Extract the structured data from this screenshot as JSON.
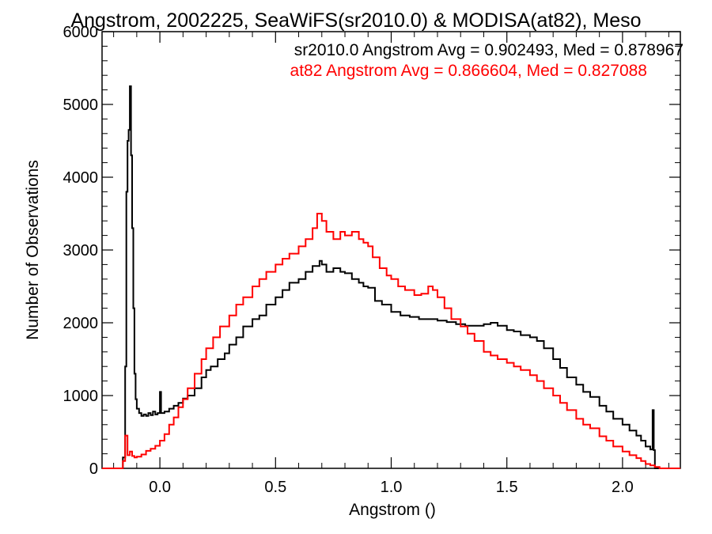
{
  "chart_data": {
    "type": "line",
    "title": "Angstrom, 2002225, SeaWiFS(sr2010.0) & MODISA(at82), Meso",
    "xlabel": "Angstrom ()",
    "ylabel": "Number of Observations",
    "xlim": [
      -0.25,
      2.25
    ],
    "ylim": [
      0,
      6000
    ],
    "xticks": [
      0.0,
      0.5,
      1.0,
      1.5,
      2.0
    ],
    "xtick_labels": [
      "0.0",
      "0.5",
      "1.0",
      "1.5",
      "2.0"
    ],
    "yticks": [
      0,
      1000,
      2000,
      3000,
      4000,
      5000,
      6000
    ],
    "ytick_labels": [
      "0",
      "1000",
      "2000",
      "3000",
      "4000",
      "5000",
      "6000"
    ],
    "grid": false,
    "annotations": [
      {
        "text": "sr2010.0 Angstrom Avg = 0.902493, Med = 0.878967",
        "color": "#000000"
      },
      {
        "text": "at82 Angstrom Avg = 0.866604, Med = 0.827088",
        "color": "#ff0000"
      }
    ],
    "series": [
      {
        "color": "#000000",
        "style": "step",
        "points": [
          [
            -0.25,
            0
          ],
          [
            -0.17,
            0
          ],
          [
            -0.16,
            150
          ],
          [
            -0.15,
            1400
          ],
          [
            -0.145,
            3800
          ],
          [
            -0.14,
            4500
          ],
          [
            -0.135,
            4650
          ],
          [
            -0.13,
            5250
          ],
          [
            -0.125,
            4300
          ],
          [
            -0.12,
            3300
          ],
          [
            -0.115,
            2200
          ],
          [
            -0.11,
            1300
          ],
          [
            -0.105,
            950
          ],
          [
            -0.1,
            820
          ],
          [
            -0.09,
            760
          ],
          [
            -0.08,
            720
          ],
          [
            -0.07,
            740
          ],
          [
            -0.06,
            720
          ],
          [
            -0.05,
            760
          ],
          [
            -0.04,
            730
          ],
          [
            -0.03,
            780
          ],
          [
            -0.02,
            740
          ],
          [
            -0.01,
            760
          ],
          [
            0.0,
            1050
          ],
          [
            0.005,
            760
          ],
          [
            0.02,
            780
          ],
          [
            0.04,
            820
          ],
          [
            0.06,
            860
          ],
          [
            0.08,
            900
          ],
          [
            0.1,
            960
          ],
          [
            0.12,
            1000
          ],
          [
            0.15,
            1100
          ],
          [
            0.18,
            1250
          ],
          [
            0.2,
            1350
          ],
          [
            0.22,
            1400
          ],
          [
            0.25,
            1500
          ],
          [
            0.28,
            1580
          ],
          [
            0.3,
            1700
          ],
          [
            0.33,
            1800
          ],
          [
            0.36,
            1950
          ],
          [
            0.4,
            2050
          ],
          [
            0.43,
            2100
          ],
          [
            0.46,
            2250
          ],
          [
            0.5,
            2350
          ],
          [
            0.53,
            2450
          ],
          [
            0.56,
            2550
          ],
          [
            0.6,
            2600
          ],
          [
            0.63,
            2700
          ],
          [
            0.66,
            2780
          ],
          [
            0.69,
            2850
          ],
          [
            0.7,
            2800
          ],
          [
            0.72,
            2700
          ],
          [
            0.75,
            2750
          ],
          [
            0.78,
            2700
          ],
          [
            0.8,
            2680
          ],
          [
            0.83,
            2600
          ],
          [
            0.86,
            2550
          ],
          [
            0.88,
            2500
          ],
          [
            0.9,
            2480
          ],
          [
            0.93,
            2300
          ],
          [
            0.96,
            2250
          ],
          [
            1.0,
            2150
          ],
          [
            1.04,
            2100
          ],
          [
            1.08,
            2080
          ],
          [
            1.12,
            2050
          ],
          [
            1.16,
            2050
          ],
          [
            1.2,
            2030
          ],
          [
            1.24,
            2010
          ],
          [
            1.28,
            1980
          ],
          [
            1.32,
            1960
          ],
          [
            1.36,
            1960
          ],
          [
            1.4,
            1980
          ],
          [
            1.43,
            2000
          ],
          [
            1.46,
            1960
          ],
          [
            1.5,
            1900
          ],
          [
            1.53,
            1880
          ],
          [
            1.56,
            1830
          ],
          [
            1.6,
            1800
          ],
          [
            1.63,
            1750
          ],
          [
            1.66,
            1650
          ],
          [
            1.7,
            1500
          ],
          [
            1.73,
            1380
          ],
          [
            1.76,
            1250
          ],
          [
            1.8,
            1150
          ],
          [
            1.83,
            1050
          ],
          [
            1.86,
            980
          ],
          [
            1.9,
            860
          ],
          [
            1.93,
            780
          ],
          [
            1.96,
            680
          ],
          [
            2.0,
            600
          ],
          [
            2.03,
            520
          ],
          [
            2.06,
            450
          ],
          [
            2.08,
            380
          ],
          [
            2.1,
            300
          ],
          [
            2.12,
            260
          ],
          [
            2.13,
            800
          ],
          [
            2.135,
            250
          ],
          [
            2.14,
            0
          ],
          [
            2.25,
            0
          ]
        ]
      },
      {
        "color": "#ff0000",
        "style": "step",
        "points": [
          [
            -0.25,
            0
          ],
          [
            -0.18,
            0
          ],
          [
            -0.16,
            100
          ],
          [
            -0.15,
            450
          ],
          [
            -0.14,
            180
          ],
          [
            -0.13,
            230
          ],
          [
            -0.12,
            170
          ],
          [
            -0.11,
            150
          ],
          [
            -0.1,
            160
          ],
          [
            -0.08,
            190
          ],
          [
            -0.06,
            240
          ],
          [
            -0.04,
            270
          ],
          [
            -0.02,
            310
          ],
          [
            0.0,
            380
          ],
          [
            0.02,
            470
          ],
          [
            0.04,
            600
          ],
          [
            0.06,
            700
          ],
          [
            0.08,
            840
          ],
          [
            0.1,
            950
          ],
          [
            0.12,
            1100
          ],
          [
            0.15,
            1300
          ],
          [
            0.18,
            1500
          ],
          [
            0.2,
            1650
          ],
          [
            0.23,
            1800
          ],
          [
            0.26,
            1950
          ],
          [
            0.3,
            2100
          ],
          [
            0.33,
            2250
          ],
          [
            0.36,
            2350
          ],
          [
            0.4,
            2500
          ],
          [
            0.43,
            2600
          ],
          [
            0.46,
            2700
          ],
          [
            0.5,
            2800
          ],
          [
            0.53,
            2880
          ],
          [
            0.56,
            2950
          ],
          [
            0.6,
            3050
          ],
          [
            0.63,
            3150
          ],
          [
            0.66,
            3300
          ],
          [
            0.68,
            3500
          ],
          [
            0.7,
            3400
          ],
          [
            0.72,
            3250
          ],
          [
            0.75,
            3150
          ],
          [
            0.78,
            3250
          ],
          [
            0.8,
            3200
          ],
          [
            0.83,
            3250
          ],
          [
            0.86,
            3150
          ],
          [
            0.88,
            3100
          ],
          [
            0.9,
            3050
          ],
          [
            0.92,
            2900
          ],
          [
            0.95,
            2750
          ],
          [
            0.98,
            2650
          ],
          [
            1.0,
            2600
          ],
          [
            1.03,
            2500
          ],
          [
            1.06,
            2450
          ],
          [
            1.1,
            2380
          ],
          [
            1.13,
            2400
          ],
          [
            1.16,
            2500
          ],
          [
            1.18,
            2450
          ],
          [
            1.2,
            2350
          ],
          [
            1.23,
            2200
          ],
          [
            1.26,
            2050
          ],
          [
            1.3,
            1950
          ],
          [
            1.33,
            1850
          ],
          [
            1.36,
            1750
          ],
          [
            1.4,
            1600
          ],
          [
            1.43,
            1550
          ],
          [
            1.46,
            1500
          ],
          [
            1.5,
            1450
          ],
          [
            1.53,
            1400
          ],
          [
            1.56,
            1350
          ],
          [
            1.6,
            1280
          ],
          [
            1.63,
            1200
          ],
          [
            1.66,
            1100
          ],
          [
            1.7,
            1000
          ],
          [
            1.73,
            900
          ],
          [
            1.76,
            800
          ],
          [
            1.8,
            680
          ],
          [
            1.83,
            600
          ],
          [
            1.86,
            550
          ],
          [
            1.9,
            440
          ],
          [
            1.93,
            380
          ],
          [
            1.96,
            300
          ],
          [
            2.0,
            230
          ],
          [
            2.03,
            180
          ],
          [
            2.06,
            140
          ],
          [
            2.08,
            100
          ],
          [
            2.1,
            60
          ],
          [
            2.12,
            40
          ],
          [
            2.14,
            20
          ],
          [
            2.16,
            0
          ],
          [
            2.25,
            0
          ]
        ]
      }
    ]
  }
}
